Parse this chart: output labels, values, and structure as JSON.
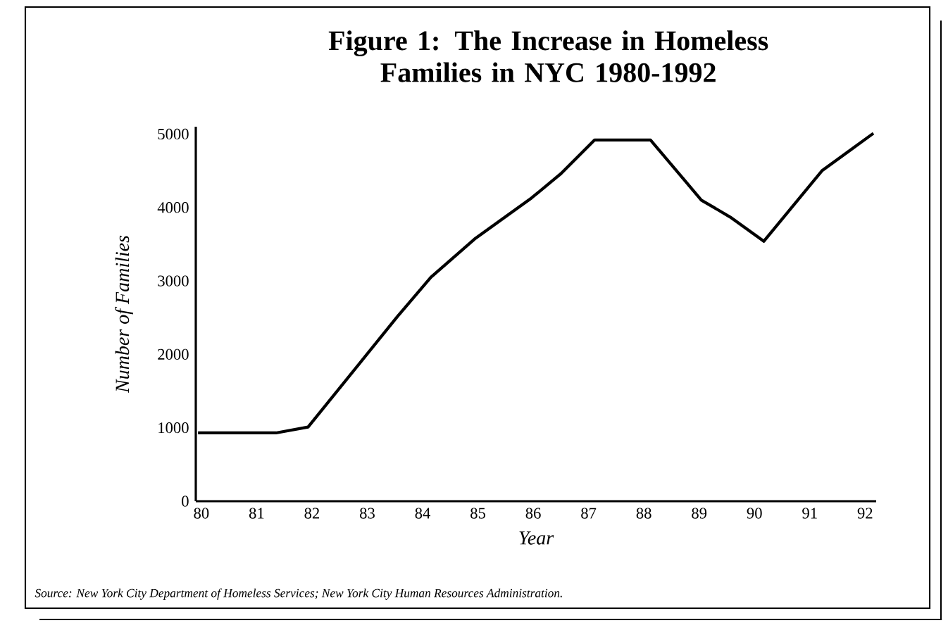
{
  "chart_data": {
    "type": "line",
    "title": "Figure 1: The Increase in Homeless Families in NYC 1980-1992",
    "xlabel": "Year",
    "ylabel": "Number of Families",
    "annotations": [
      "Source: New York City Department of Homeless Services; New York City Human Resources Administration."
    ],
    "x": [
      79.94,
      81.35,
      81.93,
      83.54,
      84.15,
      84.94,
      85.97,
      86.5,
      87.11,
      88.12,
      89.04,
      89.56,
      90.17,
      91.22,
      91.75,
      92.15
    ],
    "series": [
      {
        "color": "#000000",
        "values": [
          930,
          930,
          1010,
          2510,
          3050,
          3570,
          4130,
          4460,
          4920,
          4920,
          4100,
          3870,
          3540,
          4500,
          4790,
          5010
        ]
      }
    ],
    "xlim": [
      79.9,
      92.2
    ],
    "ylim": [
      0,
      5100
    ],
    "xticks": [
      80,
      81,
      82,
      83,
      84,
      85,
      86,
      87,
      88,
      89,
      90,
      91,
      92
    ],
    "yticks": [
      0,
      1000,
      2000,
      3000,
      4000,
      5000
    ],
    "grid": false,
    "marker": "none",
    "line_style": "solid"
  }
}
